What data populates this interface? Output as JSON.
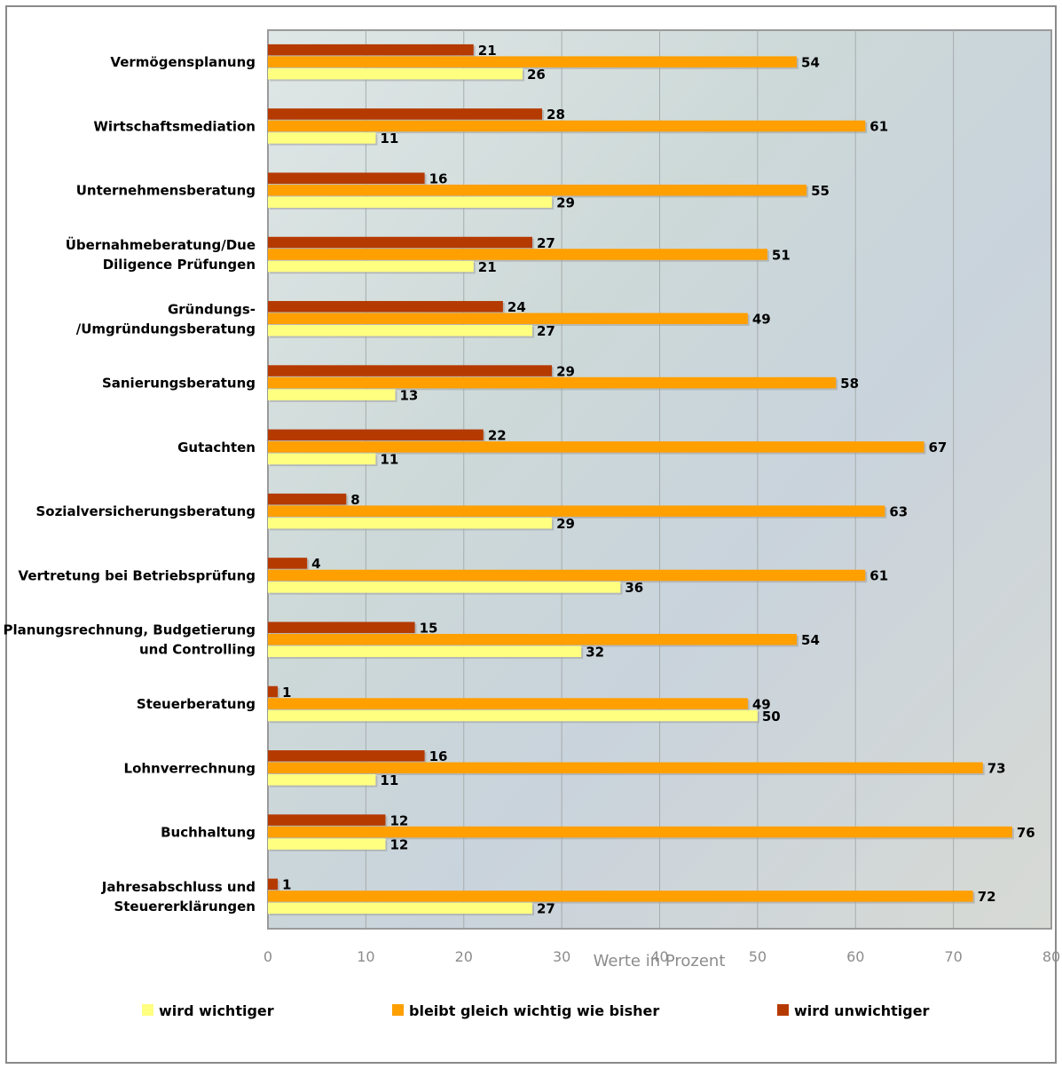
{
  "chart_data": {
    "type": "bar",
    "orientation": "horizontal",
    "categories": [
      "Vermögensplanung",
      "Wirtschaftsmediation",
      "Unternehmensberatung",
      "Übernahmeberatung/Due Diligence Prüfungen",
      "Gründungs- /Umgründungsberatung",
      "Sanierungsberatung",
      "Gutachten",
      "Sozialversicherungsberatung",
      "Vertretung bei Betriebsprüfung",
      "Planungsrechnung, Budgetierung und Controlling",
      "Steuerberatung",
      "Lohnverrechnung",
      "Buchhaltung",
      "Jahresabschluss und Steuererklärungen"
    ],
    "category_lines": [
      [
        "Vermögensplanung"
      ],
      [
        "Wirtschaftsmediation"
      ],
      [
        "Unternehmensberatung"
      ],
      [
        "Übernahmeberatung/Due",
        "Diligence Prüfungen"
      ],
      [
        "Gründungs-",
        "/Umgründungsberatung"
      ],
      [
        "Sanierungsberatung"
      ],
      [
        "Gutachten"
      ],
      [
        "Sozialversicherungsberatung"
      ],
      [
        "Vertretung bei Betriebsprüfung"
      ],
      [
        "Planungsrechnung, Budgetierung",
        "und Controlling"
      ],
      [
        "Steuerberatung"
      ],
      [
        "Lohnverrechnung"
      ],
      [
        "Buchhaltung"
      ],
      [
        "Jahresabschluss und",
        "Steuererklärungen"
      ]
    ],
    "series": [
      {
        "name": "wird unwichtiger",
        "color": "#b53a00",
        "values": [
          21,
          28,
          16,
          27,
          24,
          29,
          22,
          8,
          4,
          15,
          1,
          16,
          12,
          1
        ]
      },
      {
        "name": "bleibt gleich wichtig wie bisher",
        "color": "#ff9f00",
        "values": [
          54,
          61,
          55,
          51,
          49,
          58,
          67,
          63,
          61,
          54,
          49,
          73,
          76,
          72
        ]
      },
      {
        "name": "wird wichtiger",
        "color": "#ffff80",
        "values": [
          26,
          11,
          29,
          21,
          27,
          13,
          11,
          29,
          36,
          32,
          50,
          11,
          12,
          27
        ]
      }
    ],
    "legend_order": [
      "wird wichtiger",
      "bleibt gleich wichtig wie bisher",
      "wird unwichtiger"
    ],
    "xlabel": "Werte in Prozent",
    "xlim": [
      0,
      80
    ],
    "xticks": [
      0,
      10,
      20,
      30,
      40,
      50,
      60,
      70,
      80
    ],
    "grid": true,
    "legend_position": "bottom"
  }
}
